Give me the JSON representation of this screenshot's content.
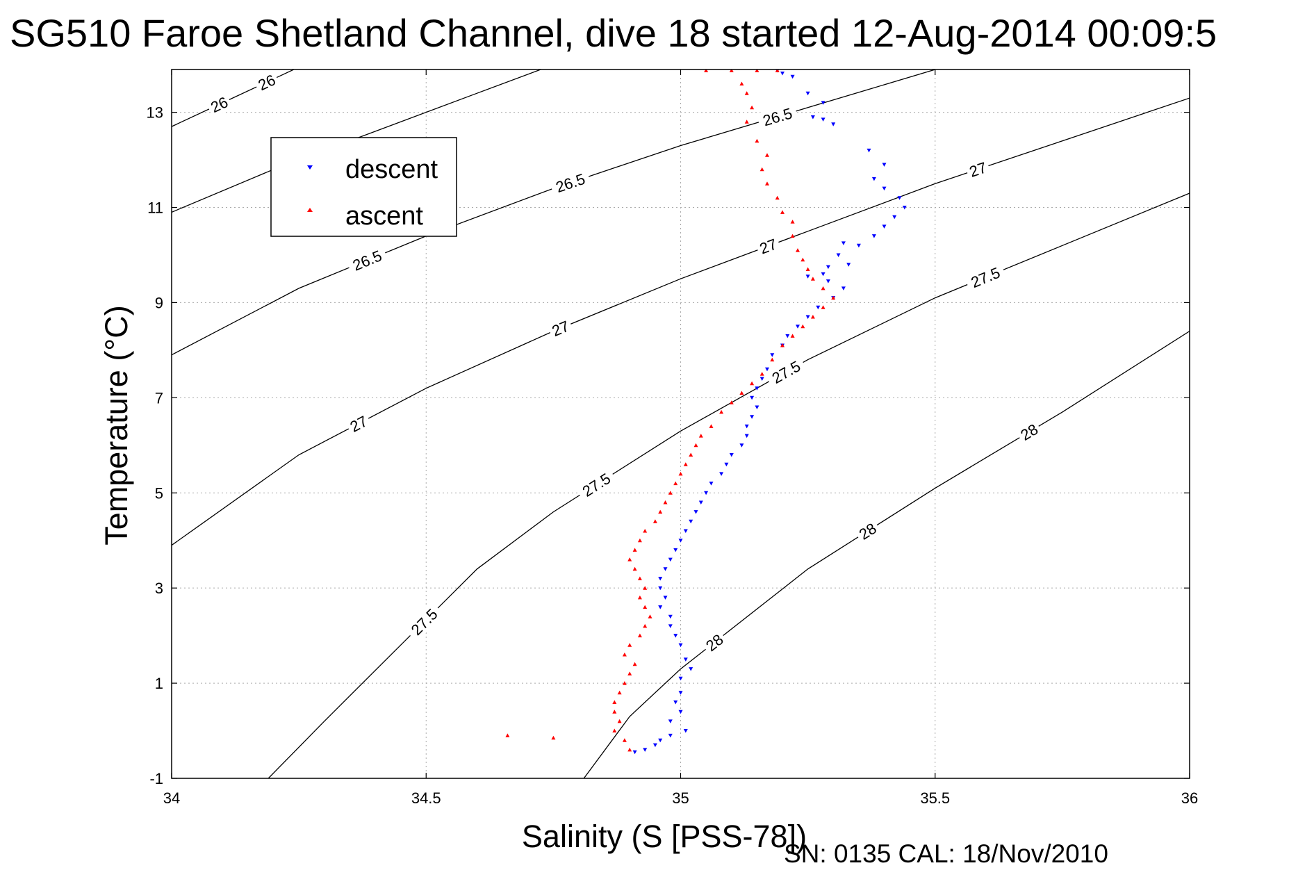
{
  "title": "SG510 Faroe Shetland Channel, dive 18 started 12-Aug-2014 00:09:5",
  "footer": "SN: 0135  CAL: 18/Nov/2010",
  "colors": {
    "descent": "#0000ff",
    "ascent": "#ff0000",
    "contour": "#000000",
    "grid": "#aaaaaa"
  },
  "chart_data": {
    "type": "scatter",
    "title": "SG510 Faroe Shetland Channel, dive 18 started 12-Aug-2014 00:09:5",
    "xlabel": "Salinity (S [PSS-78])",
    "ylabel": "Temperature (°C)",
    "xlim": [
      34,
      36
    ],
    "ylim": [
      -1,
      13.9
    ],
    "xticks": [
      34,
      34.5,
      35,
      35.5,
      36
    ],
    "xtick_labels": [
      "34",
      "34.5",
      "35",
      "35.5",
      "36"
    ],
    "yticks": [
      -1,
      1,
      3,
      5,
      7,
      9,
      11,
      13
    ],
    "ytick_labels": [
      "-1",
      "1",
      "3",
      "5",
      "7",
      "9",
      "11",
      "13"
    ],
    "grid": true,
    "legend": {
      "position": "top-left",
      "entries": [
        "descent",
        "ascent"
      ]
    },
    "series": [
      {
        "name": "descent",
        "marker": "triangle-down",
        "points": [
          [
            35.19,
            13.88
          ],
          [
            35.2,
            13.82
          ],
          [
            35.22,
            13.75
          ],
          [
            35.25,
            13.4
          ],
          [
            35.28,
            13.2
          ],
          [
            35.26,
            12.9
          ],
          [
            35.28,
            12.85
          ],
          [
            35.3,
            12.75
          ],
          [
            35.37,
            12.2
          ],
          [
            35.4,
            11.9
          ],
          [
            35.38,
            11.6
          ],
          [
            35.4,
            11.4
          ],
          [
            35.43,
            11.2
          ],
          [
            35.44,
            11.0
          ],
          [
            35.42,
            10.8
          ],
          [
            35.4,
            10.6
          ],
          [
            35.38,
            10.4
          ],
          [
            35.35,
            10.2
          ],
          [
            35.32,
            10.25
          ],
          [
            35.31,
            10.0
          ],
          [
            35.33,
            9.8
          ],
          [
            35.29,
            9.75
          ],
          [
            35.28,
            9.6
          ],
          [
            35.25,
            9.55
          ],
          [
            35.29,
            9.45
          ],
          [
            35.32,
            9.3
          ],
          [
            35.3,
            9.1
          ],
          [
            35.27,
            8.9
          ],
          [
            35.25,
            8.7
          ],
          [
            35.23,
            8.5
          ],
          [
            35.21,
            8.3
          ],
          [
            35.2,
            8.1
          ],
          [
            35.18,
            7.9
          ],
          [
            35.17,
            7.6
          ],
          [
            35.16,
            7.4
          ],
          [
            35.15,
            7.2
          ],
          [
            35.14,
            7.0
          ],
          [
            35.15,
            6.8
          ],
          [
            35.14,
            6.6
          ],
          [
            35.13,
            6.4
          ],
          [
            35.13,
            6.2
          ],
          [
            35.12,
            6.0
          ],
          [
            35.1,
            5.8
          ],
          [
            35.09,
            5.6
          ],
          [
            35.08,
            5.4
          ],
          [
            35.06,
            5.2
          ],
          [
            35.05,
            5.0
          ],
          [
            35.04,
            4.8
          ],
          [
            35.03,
            4.6
          ],
          [
            35.02,
            4.4
          ],
          [
            35.01,
            4.2
          ],
          [
            35.0,
            4.0
          ],
          [
            34.99,
            3.8
          ],
          [
            34.98,
            3.6
          ],
          [
            34.97,
            3.4
          ],
          [
            34.96,
            3.2
          ],
          [
            34.96,
            3.0
          ],
          [
            34.97,
            2.8
          ],
          [
            34.96,
            2.6
          ],
          [
            34.98,
            2.4
          ],
          [
            34.98,
            2.2
          ],
          [
            34.99,
            2.0
          ],
          [
            35.0,
            1.8
          ],
          [
            35.01,
            1.5
          ],
          [
            35.02,
            1.3
          ],
          [
            35.0,
            1.1
          ],
          [
            35.0,
            0.8
          ],
          [
            34.99,
            0.6
          ],
          [
            35.0,
            0.4
          ],
          [
            34.98,
            0.2
          ],
          [
            35.01,
            0.0
          ],
          [
            34.98,
            -0.1
          ],
          [
            34.96,
            -0.2
          ],
          [
            34.95,
            -0.3
          ],
          [
            34.93,
            -0.4
          ],
          [
            34.91,
            -0.45
          ]
        ]
      },
      {
        "name": "ascent",
        "marker": "triangle-up",
        "points": [
          [
            35.05,
            13.88
          ],
          [
            35.1,
            13.88
          ],
          [
            35.15,
            13.88
          ],
          [
            35.19,
            13.88
          ],
          [
            35.12,
            13.6
          ],
          [
            35.13,
            13.4
          ],
          [
            35.14,
            13.1
          ],
          [
            35.13,
            12.8
          ],
          [
            35.15,
            12.4
          ],
          [
            35.17,
            12.1
          ],
          [
            35.16,
            11.8
          ],
          [
            35.17,
            11.5
          ],
          [
            35.19,
            11.2
          ],
          [
            35.2,
            10.9
          ],
          [
            35.22,
            10.7
          ],
          [
            35.22,
            10.4
          ],
          [
            35.23,
            10.1
          ],
          [
            35.24,
            9.9
          ],
          [
            35.25,
            9.7
          ],
          [
            35.26,
            9.5
          ],
          [
            35.28,
            9.3
          ],
          [
            35.3,
            9.1
          ],
          [
            35.28,
            8.9
          ],
          [
            35.26,
            8.7
          ],
          [
            35.24,
            8.5
          ],
          [
            35.22,
            8.3
          ],
          [
            35.2,
            8.1
          ],
          [
            35.18,
            7.8
          ],
          [
            35.16,
            7.5
          ],
          [
            35.14,
            7.3
          ],
          [
            35.12,
            7.1
          ],
          [
            35.1,
            6.9
          ],
          [
            35.08,
            6.7
          ],
          [
            35.06,
            6.4
          ],
          [
            35.04,
            6.2
          ],
          [
            35.03,
            6.0
          ],
          [
            35.02,
            5.8
          ],
          [
            35.01,
            5.6
          ],
          [
            35.0,
            5.4
          ],
          [
            34.99,
            5.2
          ],
          [
            34.98,
            5.0
          ],
          [
            34.97,
            4.8
          ],
          [
            34.96,
            4.6
          ],
          [
            34.95,
            4.4
          ],
          [
            34.93,
            4.2
          ],
          [
            34.92,
            4.0
          ],
          [
            34.91,
            3.8
          ],
          [
            34.9,
            3.6
          ],
          [
            34.91,
            3.4
          ],
          [
            34.92,
            3.2
          ],
          [
            34.93,
            3.0
          ],
          [
            34.92,
            2.8
          ],
          [
            34.93,
            2.6
          ],
          [
            34.94,
            2.4
          ],
          [
            34.93,
            2.2
          ],
          [
            34.92,
            2.0
          ],
          [
            34.9,
            1.8
          ],
          [
            34.89,
            1.6
          ],
          [
            34.91,
            1.4
          ],
          [
            34.9,
            1.2
          ],
          [
            34.89,
            1.0
          ],
          [
            34.88,
            0.8
          ],
          [
            34.87,
            0.6
          ],
          [
            34.87,
            0.4
          ],
          [
            34.88,
            0.2
          ],
          [
            34.87,
            0.0
          ],
          [
            34.89,
            -0.2
          ],
          [
            34.9,
            -0.4
          ],
          [
            34.66,
            -0.1
          ],
          [
            34.75,
            -0.15
          ]
        ]
      }
    ],
    "density_contours": [
      {
        "sigma": 26,
        "labels": [
          "26",
          "26"
        ],
        "points": [
          [
            34.0,
            12.7
          ],
          [
            34.1,
            13.2
          ],
          [
            34.2,
            13.7
          ],
          [
            34.28,
            14.1
          ]
        ]
      },
      {
        "sigma": 26,
        "labels": [],
        "points": [
          [
            34.0,
            10.9
          ],
          [
            34.2,
            11.8
          ],
          [
            34.4,
            12.6
          ],
          [
            34.6,
            13.4
          ],
          [
            34.8,
            14.2
          ]
        ]
      },
      {
        "sigma": 26.5,
        "labels": [
          "26.5",
          "26.5",
          "26.5"
        ],
        "points": [
          [
            34.0,
            7.9
          ],
          [
            34.25,
            9.3
          ],
          [
            34.5,
            10.4
          ],
          [
            34.75,
            11.4
          ],
          [
            35.0,
            12.3
          ],
          [
            35.25,
            13.1
          ],
          [
            35.5,
            13.9
          ],
          [
            35.6,
            14.2
          ]
        ]
      },
      {
        "sigma": 27,
        "labels": [
          "27",
          "27",
          "27",
          "27"
        ],
        "points": [
          [
            34.0,
            3.9
          ],
          [
            34.25,
            5.8
          ],
          [
            34.5,
            7.2
          ],
          [
            34.75,
            8.4
          ],
          [
            35.0,
            9.5
          ],
          [
            35.25,
            10.5
          ],
          [
            35.5,
            11.5
          ],
          [
            35.75,
            12.4
          ],
          [
            36.0,
            13.3
          ]
        ]
      },
      {
        "sigma": 27.5,
        "labels": [
          "27.5",
          "27.5",
          "27.5",
          "27.5"
        ],
        "points": [
          [
            34.19,
            -1.0
          ],
          [
            34.3,
            0.2
          ],
          [
            34.45,
            1.8
          ],
          [
            34.6,
            3.4
          ],
          [
            34.75,
            4.6
          ],
          [
            35.0,
            6.3
          ],
          [
            35.25,
            7.8
          ],
          [
            35.5,
            9.1
          ],
          [
            35.75,
            10.2
          ],
          [
            36.0,
            11.3
          ]
        ]
      },
      {
        "sigma": 28,
        "labels": [
          "28",
          "28",
          "28"
        ],
        "points": [
          [
            34.81,
            -1.0
          ],
          [
            34.9,
            0.3
          ],
          [
            35.0,
            1.3
          ],
          [
            35.25,
            3.4
          ],
          [
            35.5,
            5.1
          ],
          [
            35.75,
            6.7
          ],
          [
            36.0,
            8.4
          ]
        ]
      }
    ]
  }
}
